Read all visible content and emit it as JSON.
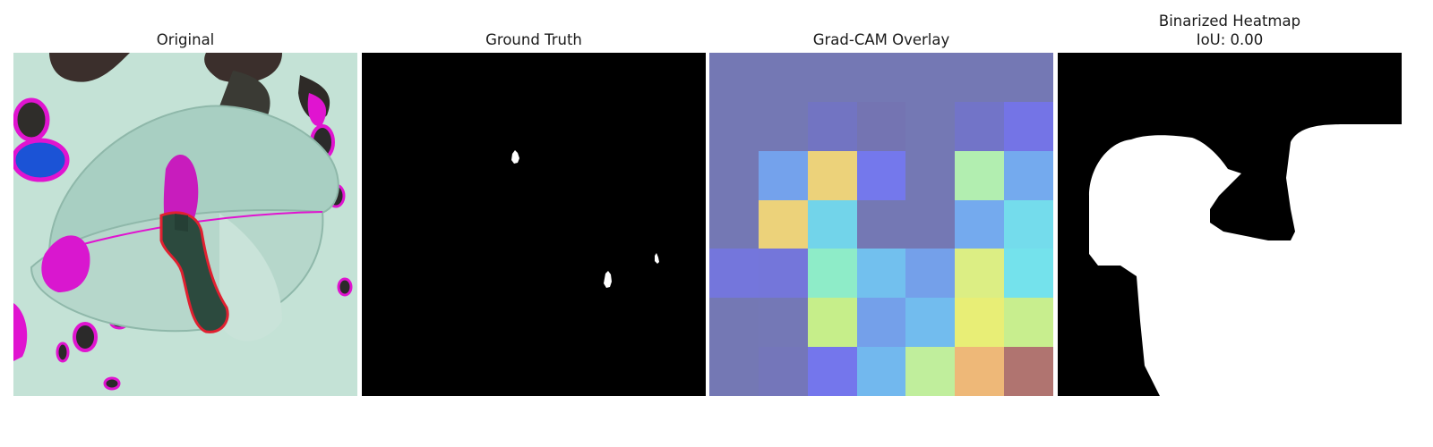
{
  "panels": {
    "original": {
      "title": "Original"
    },
    "ground_truth": {
      "title": "Ground Truth"
    },
    "gradcam": {
      "title": "Grad-CAM Overlay",
      "grid": [
        [
          "#7478b4",
          "#7478b4",
          "#7478b4",
          "#7478b4",
          "#7478b4",
          "#7478b4",
          "#7478b4"
        ],
        [
          "#7478b4",
          "#7478b4",
          "#7274c2",
          "#7474b2",
          "#7478b4",
          "#7274c8",
          "#7474e6"
        ],
        [
          "#7478b4",
          "#74a2ec",
          "#ecd27a",
          "#7478ec",
          "#7478b4",
          "#b2eeb0",
          "#74aaee"
        ],
        [
          "#7478b4",
          "#ecd27a",
          "#72d4ea",
          "#7478b4",
          "#7478b4",
          "#74aaee",
          "#74dcec"
        ],
        [
          "#7476dc",
          "#7476da",
          "#8eecc8",
          "#72c0ee",
          "#74a0ea",
          "#dcee84",
          "#74e2ec"
        ],
        [
          "#7478b4",
          "#7478b6",
          "#c6ee8a",
          "#74a0ea",
          "#72bcee",
          "#e8ee76",
          "#c8ee8e"
        ],
        [
          "#7478b4",
          "#7476ba",
          "#7476ec",
          "#72b8ee",
          "#c0ee9c",
          "#eeb878",
          "#b07470"
        ]
      ]
    },
    "binarized": {
      "title_line1": "Binarized Heatmap",
      "title_line2": "IoU: 0.00"
    }
  }
}
